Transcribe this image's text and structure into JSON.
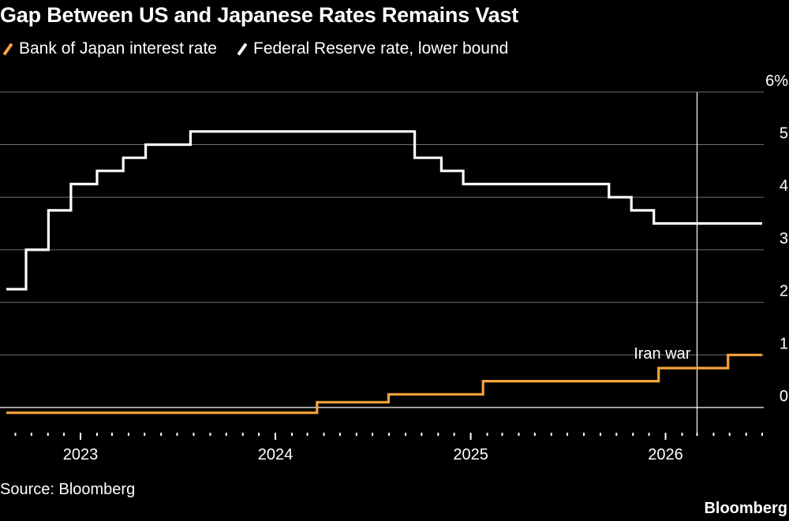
{
  "chart_data": {
    "type": "line",
    "title": "Gap Between US and Japanese Rates Remains Vast",
    "source": "Source: Bloomberg",
    "brand": "Bloomberg",
    "y_unit_label": "6%",
    "ylim": [
      -0.1,
      6
    ],
    "y_ticks": [
      0,
      1,
      2,
      3,
      4,
      5,
      6
    ],
    "y_tick_labels": [
      "0",
      "1",
      "2",
      "3",
      "4",
      "5",
      "6%"
    ],
    "x_range": [
      "2022-08-15",
      "2026-07-01"
    ],
    "x_tick_labels": [
      {
        "label": "2023",
        "date": "2023-01-01"
      },
      {
        "label": "2024",
        "date": "2024-01-01"
      },
      {
        "label": "2025",
        "date": "2025-01-01"
      },
      {
        "label": "2026",
        "date": "2026-01-01"
      }
    ],
    "grid": true,
    "legend_position": "top-left",
    "series": [
      {
        "name": "Bank of Japan interest rate",
        "color": "#f5a33a",
        "step": true,
        "points": [
          {
            "date": "2022-08-15",
            "value": -0.1
          },
          {
            "date": "2024-03-19",
            "value": 0.1
          },
          {
            "date": "2024-07-31",
            "value": 0.25
          },
          {
            "date": "2025-01-24",
            "value": 0.5
          },
          {
            "date": "2025-12-19",
            "value": 0.75
          },
          {
            "date": "2026-04-28",
            "value": 1.0
          },
          {
            "date": "2026-07-01",
            "value": 1.0
          }
        ]
      },
      {
        "name": "Federal Reserve rate, lower bound",
        "color": "#ffffff",
        "step": true,
        "points": [
          {
            "date": "2022-08-15",
            "value": 2.25
          },
          {
            "date": "2022-09-21",
            "value": 3.0
          },
          {
            "date": "2022-11-02",
            "value": 3.75
          },
          {
            "date": "2022-12-14",
            "value": 4.25
          },
          {
            "date": "2023-02-01",
            "value": 4.5
          },
          {
            "date": "2023-03-22",
            "value": 4.75
          },
          {
            "date": "2023-05-03",
            "value": 5.0
          },
          {
            "date": "2023-07-26",
            "value": 5.25
          },
          {
            "date": "2024-09-18",
            "value": 4.75
          },
          {
            "date": "2024-11-07",
            "value": 4.5
          },
          {
            "date": "2024-12-18",
            "value": 4.25
          },
          {
            "date": "2025-09-17",
            "value": 4.0
          },
          {
            "date": "2025-10-29",
            "value": 3.75
          },
          {
            "date": "2025-12-10",
            "value": 3.5
          },
          {
            "date": "2026-07-01",
            "value": 3.5
          }
        ]
      }
    ],
    "annotations": [
      {
        "label": "Iran war",
        "date": "2026-03-01"
      }
    ]
  }
}
